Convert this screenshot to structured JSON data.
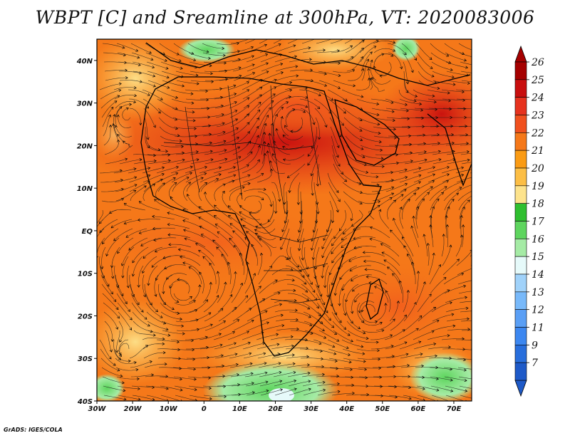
{
  "title": "WBPT [C] and Sreamline at 300hPa, VT: 2020083006",
  "credit": "GrADS: IGES/COLA",
  "map": {
    "lon_range": [
      -30,
      75
    ],
    "lat_range": [
      -40,
      45
    ],
    "lon_ticks": [
      {
        "value": -30,
        "label": "30W"
      },
      {
        "value": -20,
        "label": "20W"
      },
      {
        "value": -10,
        "label": "10W"
      },
      {
        "value": 0,
        "label": "0"
      },
      {
        "value": 10,
        "label": "10E"
      },
      {
        "value": 20,
        "label": "20E"
      },
      {
        "value": 30,
        "label": "30E"
      },
      {
        "value": 40,
        "label": "40E"
      },
      {
        "value": 50,
        "label": "50E"
      },
      {
        "value": 60,
        "label": "60E"
      },
      {
        "value": 70,
        "label": "70E"
      }
    ],
    "lat_ticks": [
      {
        "value": 40,
        "label": "40N"
      },
      {
        "value": 30,
        "label": "30N"
      },
      {
        "value": 20,
        "label": "20N"
      },
      {
        "value": 10,
        "label": "10N"
      },
      {
        "value": 0,
        "label": "EQ"
      },
      {
        "value": -10,
        "label": "10S"
      },
      {
        "value": -20,
        "label": "20S"
      },
      {
        "value": -30,
        "label": "30S"
      },
      {
        "value": -40,
        "label": "40S"
      }
    ]
  },
  "colorbar": {
    "levels": [
      {
        "label": "26",
        "color": "#a50000"
      },
      {
        "label": "25",
        "color": "#c80e0e"
      },
      {
        "label": "24",
        "color": "#e6321e"
      },
      {
        "label": "23",
        "color": "#f0501e"
      },
      {
        "label": "22",
        "color": "#f57819"
      },
      {
        "label": "21",
        "color": "#fa9b14"
      },
      {
        "label": "20",
        "color": "#fcbe45"
      },
      {
        "label": "19",
        "color": "#fde38c"
      },
      {
        "label": "18",
        "color": "#2fbf2f"
      },
      {
        "label": "17",
        "color": "#5ed55e"
      },
      {
        "label": "16",
        "color": "#a5eba5"
      },
      {
        "label": "15",
        "color": "#e6fafa"
      },
      {
        "label": "14",
        "color": "#a0d2fa"
      },
      {
        "label": "13",
        "color": "#78b9fa"
      },
      {
        "label": "12",
        "color": "#5a9ff5"
      },
      {
        "label": "11",
        "color": "#3c87f0"
      },
      {
        "label": "9",
        "color": "#286edc"
      },
      {
        "label": "7",
        "color": "#1e5ac8"
      }
    ],
    "top_arrow_color": "#a50000",
    "bottom_arrow_color": "#1e5ac8"
  }
}
